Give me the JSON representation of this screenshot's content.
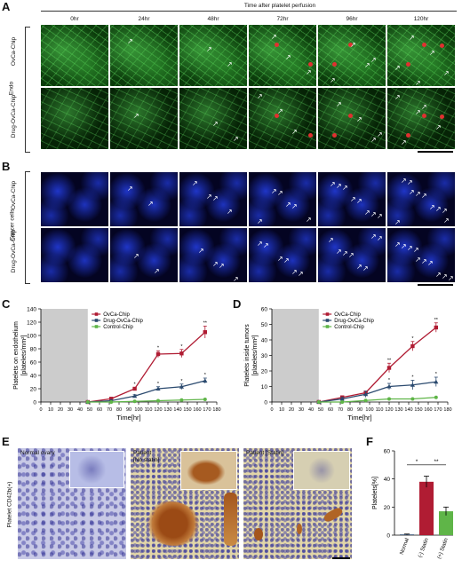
{
  "panels": {
    "A": "A",
    "B": "B",
    "C": "C",
    "D": "D",
    "E": "E",
    "F": "F"
  },
  "panelA": {
    "header": "Time after platelet perfusion",
    "timepoints": [
      "0hr",
      "24hr",
      "48hr",
      "72hr",
      "96hr",
      "120hr"
    ],
    "side_label": "Endo",
    "row_labels": [
      "OvCa-Chip",
      "Drug-OvCa-Chip"
    ]
  },
  "panelB": {
    "side_label": "Cancer cells",
    "row_labels": [
      "OvCa-Chip",
      "Drug-OvCa-Chip"
    ]
  },
  "colors": {
    "ovca": "#b01c33",
    "drug": "#2b4a6f",
    "control": "#5fb548",
    "shade": "#cccccc",
    "bar_control": "#b01c33",
    "bar_statin": "#5fb548",
    "bar_normal": "#2b4a6f"
  },
  "chart_data": [
    {
      "id": "C",
      "type": "line",
      "xlabel": "Time[hr]",
      "ylabel": "Platelets on endothelium [platelets/mm²]",
      "xlim": [
        0,
        180
      ],
      "ylim": [
        0,
        140
      ],
      "xticks": [
        0,
        10,
        20,
        30,
        40,
        50,
        60,
        70,
        80,
        90,
        100,
        110,
        120,
        130,
        140,
        150,
        160,
        170,
        180
      ],
      "yticks": [
        0,
        20,
        40,
        60,
        80,
        100,
        120,
        140
      ],
      "shaded_x": [
        0,
        48
      ],
      "legend": "top-left",
      "series": [
        {
          "name": "OvCa-Chip",
          "x": [
            48,
            72,
            96,
            120,
            144,
            168
          ],
          "y": [
            0,
            5,
            20,
            72,
            73,
            105
          ],
          "err": [
            1,
            1,
            2,
            5,
            6,
            9
          ]
        },
        {
          "name": "Drug-OvCa-Chip",
          "x": [
            48,
            72,
            96,
            120,
            144,
            168
          ],
          "y": [
            0,
            2,
            9,
            20,
            23,
            32
          ],
          "err": [
            1,
            1,
            2,
            3,
            4,
            4
          ]
        },
        {
          "name": "Control-Chip",
          "x": [
            48,
            72,
            96,
            120,
            144,
            168
          ],
          "y": [
            0,
            0,
            1,
            2,
            3,
            4
          ],
          "err": [
            0,
            0,
            0,
            0,
            0,
            0
          ]
        }
      ],
      "significance": [
        {
          "x": 96,
          "label": "*"
        },
        {
          "x": 120,
          "label": "*"
        },
        {
          "x": 144,
          "label": "*"
        },
        {
          "x": 168,
          "label": "**"
        },
        {
          "x": 120,
          "label": "*",
          "series": 1
        },
        {
          "x": 144,
          "label": "*",
          "series": 1
        },
        {
          "x": 168,
          "label": "*",
          "series": 1
        }
      ]
    },
    {
      "id": "D",
      "type": "line",
      "xlabel": "Time[hr]",
      "ylabel": "Platelets inside tumors [platelets/mm²]",
      "xlim": [
        0,
        180
      ],
      "ylim": [
        0,
        60
      ],
      "xticks": [
        0,
        10,
        20,
        30,
        40,
        50,
        60,
        70,
        80,
        90,
        100,
        110,
        120,
        130,
        140,
        150,
        160,
        170,
        180
      ],
      "yticks": [
        0,
        10,
        20,
        30,
        40,
        50,
        60
      ],
      "shaded_x": [
        0,
        48
      ],
      "legend": "top-left",
      "series": [
        {
          "name": "OvCa-Chip",
          "x": [
            48,
            72,
            96,
            120,
            144,
            168
          ],
          "y": [
            0,
            3,
            6,
            22,
            36,
            48
          ],
          "err": [
            1,
            1,
            1,
            3,
            3,
            3
          ]
        },
        {
          "name": "Drug-OvCa-Chip",
          "x": [
            48,
            72,
            96,
            120,
            144,
            168
          ],
          "y": [
            0,
            2,
            5,
            10,
            11,
            13
          ],
          "err": [
            0.5,
            1,
            2,
            2,
            3,
            3
          ]
        },
        {
          "name": "Control-Chip",
          "x": [
            48,
            72,
            96,
            120,
            144,
            168
          ],
          "y": [
            0,
            0,
            1,
            2,
            2,
            3
          ],
          "err": [
            0,
            0,
            0,
            0,
            0,
            0
          ]
        }
      ],
      "significance": [
        {
          "x": 120,
          "label": "**"
        },
        {
          "x": 144,
          "label": "*"
        },
        {
          "x": 168,
          "label": "**"
        },
        {
          "x": 120,
          "label": "*",
          "series": 1
        },
        {
          "x": 144,
          "label": "*",
          "series": 1
        },
        {
          "x": 168,
          "label": "*",
          "series": 1
        }
      ]
    },
    {
      "id": "F",
      "type": "bar",
      "ylabel": "Platelets[%]",
      "ylim": [
        0,
        60
      ],
      "yticks": [
        0,
        20,
        40,
        60
      ],
      "categories": [
        "Normal",
        "(-) Statin",
        "(+) Statin"
      ],
      "values": [
        0.5,
        38,
        17
      ],
      "err": [
        0.3,
        4,
        3
      ],
      "significance": [
        {
          "from": 0,
          "to": 1,
          "label": "*"
        },
        {
          "from": 1,
          "to": 2,
          "label": "**"
        }
      ]
    }
  ],
  "panelE": {
    "side_label": "Platelet CD42b(+)",
    "titles": [
      "Normal ovary",
      "Patient\n[No statin]",
      "Patient [Statin]"
    ],
    "title_lines": [
      [
        "Normal ovary"
      ],
      [
        "Patient",
        "[No statin]"
      ],
      [
        "Patient [Statin]"
      ]
    ]
  }
}
